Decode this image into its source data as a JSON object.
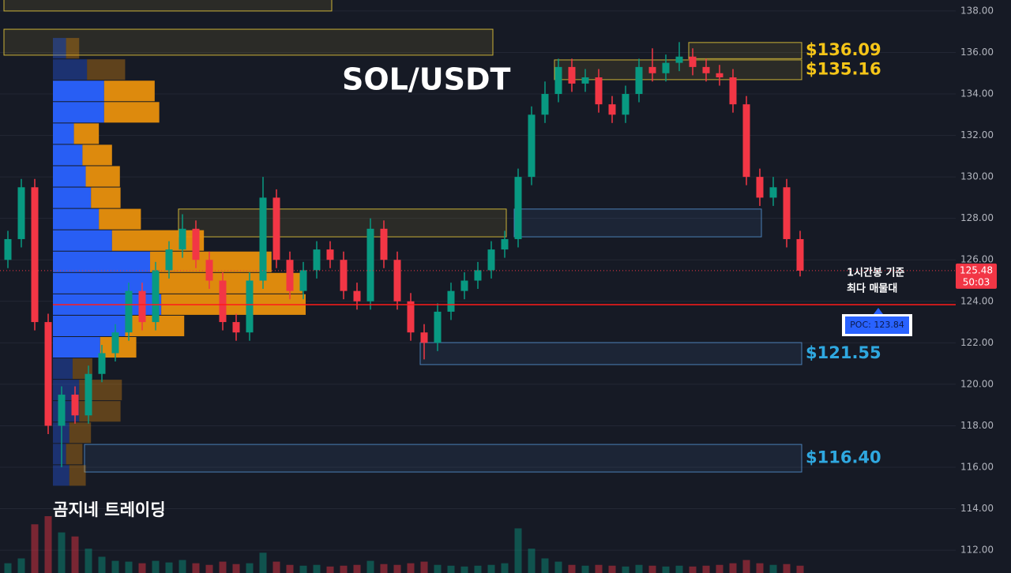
{
  "chart_data": {
    "type": "candlestick",
    "title": "SOL/USDT",
    "watermark": "곰지네 트레이딩",
    "ylim": [
      110.9,
      138.53
    ],
    "yticks": [
      {
        "value": 112,
        "label": "112.00"
      },
      {
        "value": 114,
        "label": "114.00"
      },
      {
        "value": 116,
        "label": "116.00"
      },
      {
        "value": 118,
        "label": "118.00"
      },
      {
        "value": 120,
        "label": "120.00"
      },
      {
        "value": 122,
        "label": "122.00"
      },
      {
        "value": 124,
        "label": "124.00"
      },
      {
        "value": 126,
        "label": "126.00"
      },
      {
        "value": 128,
        "label": "128.00"
      },
      {
        "value": 130,
        "label": "130.00"
      },
      {
        "value": 132,
        "label": "132.00"
      },
      {
        "value": 134,
        "label": "134.00"
      },
      {
        "value": 136,
        "label": "136.00"
      },
      {
        "value": 138,
        "label": "138.00"
      }
    ],
    "grid": true,
    "up_color": "#089981",
    "down_color": "#f23645",
    "open": [
      126,
      127,
      129.5,
      123,
      118,
      119.5,
      118.5,
      120.5,
      121.5,
      122.5,
      124.5,
      123,
      125.5,
      126.5,
      127.5,
      126,
      125,
      123,
      122.5,
      125,
      129,
      126,
      124.5,
      125.5,
      126.5,
      126,
      124.5,
      124,
      127.5,
      126,
      124,
      122.5,
      122,
      123.5,
      124.5,
      125,
      125.5,
      126.5,
      127,
      130,
      133,
      134,
      135.3,
      134.5,
      134.8,
      133.5,
      133,
      134,
      135.3,
      135,
      135.5,
      135.8,
      135.3,
      135,
      134.8,
      133.5,
      130,
      129,
      129.5,
      127
    ],
    "high": [
      127.4,
      129.9,
      129.9,
      123.4,
      119.9,
      119.9,
      120.9,
      121.9,
      122.9,
      124.9,
      124.9,
      125.9,
      126.9,
      128.2,
      127.9,
      126.4,
      125.4,
      123.4,
      125.4,
      130,
      129.4,
      126.4,
      125.9,
      126.9,
      126.9,
      126.4,
      124.9,
      128,
      127.9,
      126.4,
      124.4,
      122.9,
      123.9,
      124.9,
      125.4,
      125.9,
      126.9,
      127.4,
      130.4,
      133.4,
      134.6,
      135.7,
      135.7,
      135.2,
      135.2,
      133.9,
      134.4,
      135.7,
      136.2,
      135.9,
      136.5,
      136.2,
      135.7,
      135.4,
      135.2,
      133.9,
      130.4,
      130,
      129.9,
      127.4
    ],
    "low": [
      125.6,
      126.6,
      122.6,
      117.6,
      116,
      118.1,
      118.1,
      120.1,
      121.1,
      122.1,
      122.6,
      122.6,
      125.1,
      126.1,
      125.6,
      124.6,
      122.6,
      122.1,
      122.1,
      124.6,
      125.6,
      124.1,
      124.1,
      125.1,
      125.6,
      124.1,
      123.6,
      123.6,
      125.6,
      123.6,
      122.1,
      121.2,
      121.6,
      123.1,
      124.1,
      124.6,
      125.1,
      126.1,
      126.6,
      129.6,
      132.6,
      133.6,
      134.1,
      134.1,
      133.1,
      132.6,
      132.6,
      133.6,
      134.6,
      134.6,
      135.1,
      134.9,
      134.6,
      134.4,
      133.1,
      129.6,
      128.6,
      128.6,
      126.6,
      125.2
    ],
    "close": [
      127,
      129.5,
      123,
      118,
      119.5,
      118.5,
      120.5,
      121.5,
      122.5,
      124.5,
      123,
      125.5,
      126.5,
      127.5,
      126,
      125,
      123,
      122.5,
      125,
      129,
      126,
      124.5,
      125.5,
      126.5,
      126,
      124.5,
      124,
      127.5,
      126,
      124,
      122.5,
      122,
      123.5,
      124.5,
      125,
      125.5,
      126.5,
      127,
      130,
      133,
      134,
      135.3,
      134.5,
      134.8,
      133.5,
      133,
      134,
      135.3,
      135,
      135.5,
      135.8,
      135.3,
      135,
      134.8,
      133.5,
      130,
      129,
      129.5,
      127,
      125.48
    ],
    "volume": [
      12,
      18,
      60,
      70,
      50,
      45,
      30,
      20,
      15,
      14,
      12,
      15,
      13,
      16,
      12,
      10,
      14,
      11,
      12,
      25,
      14,
      10,
      9,
      10,
      8,
      9,
      10,
      15,
      11,
      10,
      12,
      14,
      10,
      9,
      8,
      9,
      10,
      12,
      55,
      30,
      18,
      14,
      10,
      9,
      10,
      9,
      8,
      10,
      9,
      8,
      9,
      8,
      9,
      10,
      12,
      16,
      12,
      10,
      11,
      9
    ],
    "volume_profile": {
      "bins": [
        136.7,
        135.67,
        134.64,
        133.61,
        132.58,
        131.55,
        130.52,
        129.49,
        128.46,
        127.43,
        126.4,
        125.37,
        124.34,
        123.31,
        122.28,
        121.25,
        120.22,
        119.19,
        118.16,
        117.13,
        116.1,
        115.07
      ],
      "buy": [
        20,
        52,
        78,
        78,
        32,
        45,
        50,
        58,
        70,
        90,
        148,
        160,
        165,
        110,
        72,
        30,
        40,
        40,
        25,
        20,
        25
      ],
      "sell": [
        20,
        58,
        77,
        84,
        38,
        45,
        52,
        45,
        64,
        140,
        185,
        220,
        220,
        90,
        55,
        30,
        65,
        63,
        33,
        25,
        25
      ],
      "value_area": [
        121.25,
        134.64
      ],
      "buy_color": "#2962ff",
      "sell_color": "#e8900c"
    },
    "zones": [
      {
        "low": 138.0,
        "high": 138.6,
        "from": 0,
        "to": 24,
        "color": "#c9b037"
      },
      {
        "low": 135.87,
        "high": 137.12,
        "from": 0,
        "to": 36,
        "color": "#c9b037"
      },
      {
        "low": 135.7,
        "high": 136.48,
        "from": 51,
        "to": 59,
        "color": "#c9b037",
        "label": "$136.09"
      },
      {
        "low": 134.69,
        "high": 135.64,
        "from": 41,
        "to": 59,
        "color": "#c9b037",
        "label": "$135.16"
      },
      {
        "low": 127.11,
        "high": 128.45,
        "from": 13,
        "to": 37,
        "color": "#c9b037"
      },
      {
        "low": 127.11,
        "high": 128.45,
        "from": 38,
        "to": 56,
        "color": "#4a7fb5"
      },
      {
        "low": 120.95,
        "high": 122.01,
        "from": 31,
        "to": 59,
        "color": "#4a7fb5",
        "label": "$121.55"
      },
      {
        "low": 115.77,
        "high": 117.1,
        "from": 6,
        "to": 59,
        "color": "#4a7fb5",
        "label": "$116.40"
      }
    ],
    "zone_label_colors": {
      "#c9b037": "#f5c518",
      "#4a7fb5": "#2fa8e0"
    },
    "poc": {
      "value": 123.84,
      "label": "POC: 123.84",
      "color": "#ff1a1a",
      "note": [
        "1시간봉 기준",
        "최다 매물대"
      ]
    },
    "last_price": 125.48,
    "countdown": "50:03"
  }
}
